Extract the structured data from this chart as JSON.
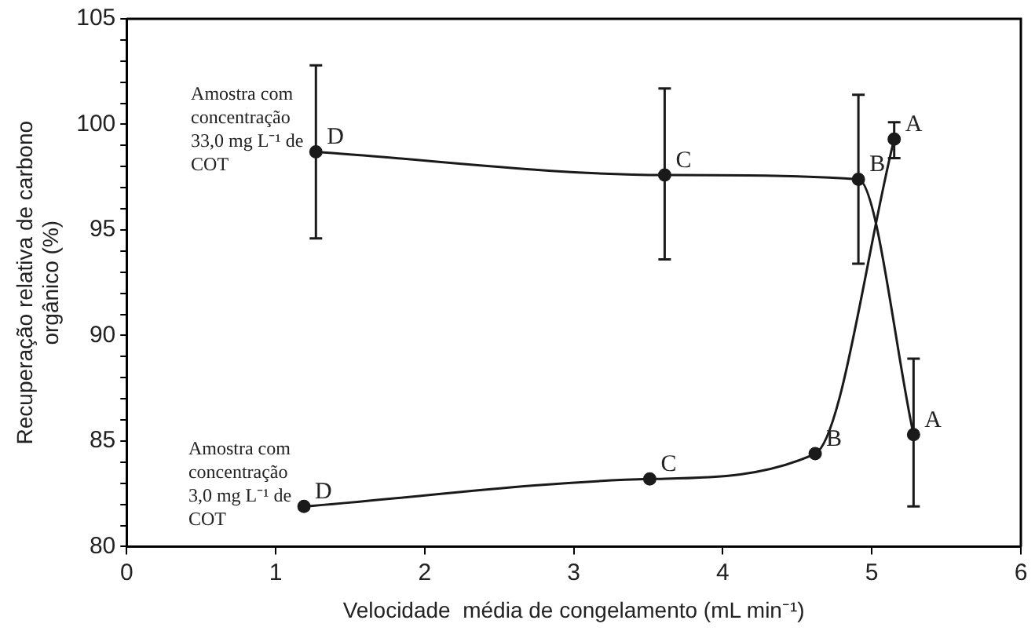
{
  "chart_data": {
    "type": "line",
    "xlabel": "Velocidade  média de congelamento (mL min⁻¹)",
    "ylabel": "Recuperação relativa de carbono orgânico (%)",
    "xlim": [
      0,
      6
    ],
    "xticks": [
      0,
      1,
      2,
      3,
      4,
      5,
      6
    ],
    "ylim": [
      80,
      105
    ],
    "yticks": [
      80,
      {
        "value": 81,
        "label": null
      },
      {
        "value": 82,
        "label": null
      },
      {
        "value": 83,
        "label": null
      },
      {
        "value": 84,
        "label": null
      },
      85,
      {
        "value": 86,
        "label": null
      },
      {
        "value": 87,
        "label": null
      },
      {
        "value": 88,
        "label": null
      },
      {
        "value": 89,
        "label": null
      },
      90,
      {
        "value": 91,
        "label": null
      },
      {
        "value": 92,
        "label": null
      },
      {
        "value": 93,
        "label": null
      },
      {
        "value": 94,
        "label": null
      },
      95,
      {
        "value": 96,
        "label": null
      },
      {
        "value": 97,
        "label": null
      },
      {
        "value": 98,
        "label": null
      },
      {
        "value": 99,
        "label": null
      },
      100,
      {
        "value": 101,
        "label": null
      },
      {
        "value": 102,
        "label": null
      },
      {
        "value": 103,
        "label": null
      },
      {
        "value": 104,
        "label": null
      },
      105
    ],
    "grid": false,
    "legend": false,
    "marker": "circle",
    "line_style": "solid",
    "series": [
      {
        "name": "Amostra com concentração 33,0 mg L⁻¹ de COT",
        "color": "#1a1a1a",
        "x": [
          1.27,
          3.61,
          4.91,
          5.28
        ],
        "values": [
          98.7,
          97.6,
          97.4,
          85.3
        ],
        "errors": [
          [
            94.6,
            102.8
          ],
          [
            93.6,
            101.7
          ],
          [
            93.4,
            101.4
          ],
          [
            81.9,
            88.9
          ]
        ]
      },
      {
        "name": "Amostra com concentração 3,0 mg L⁻¹ de COT",
        "color": "#1a1a1a",
        "x": [
          1.19,
          3.51,
          4.62,
          5.15
        ],
        "values": [
          81.9,
          83.2,
          84.4,
          99.3
        ],
        "errors": [
          null,
          null,
          null,
          [
            98.4,
            100.1
          ]
        ]
      }
    ],
    "annotations": [
      {
        "text": "D",
        "x": 1.27,
        "y": 98.7
      },
      {
        "text": "C",
        "x": 3.61,
        "y": 97.6
      },
      {
        "text": "B",
        "x": 4.91,
        "y": 97.4
      },
      {
        "text": "A",
        "x": 5.28,
        "y": 85.3
      },
      {
        "text": "D",
        "x": 1.19,
        "y": 81.9
      },
      {
        "text": "C",
        "x": 3.51,
        "y": 83.2
      },
      {
        "text": "B",
        "x": 4.62,
        "y": 84.4
      },
      {
        "text": "A",
        "x": 5.15,
        "y": 99.3
      }
    ]
  }
}
